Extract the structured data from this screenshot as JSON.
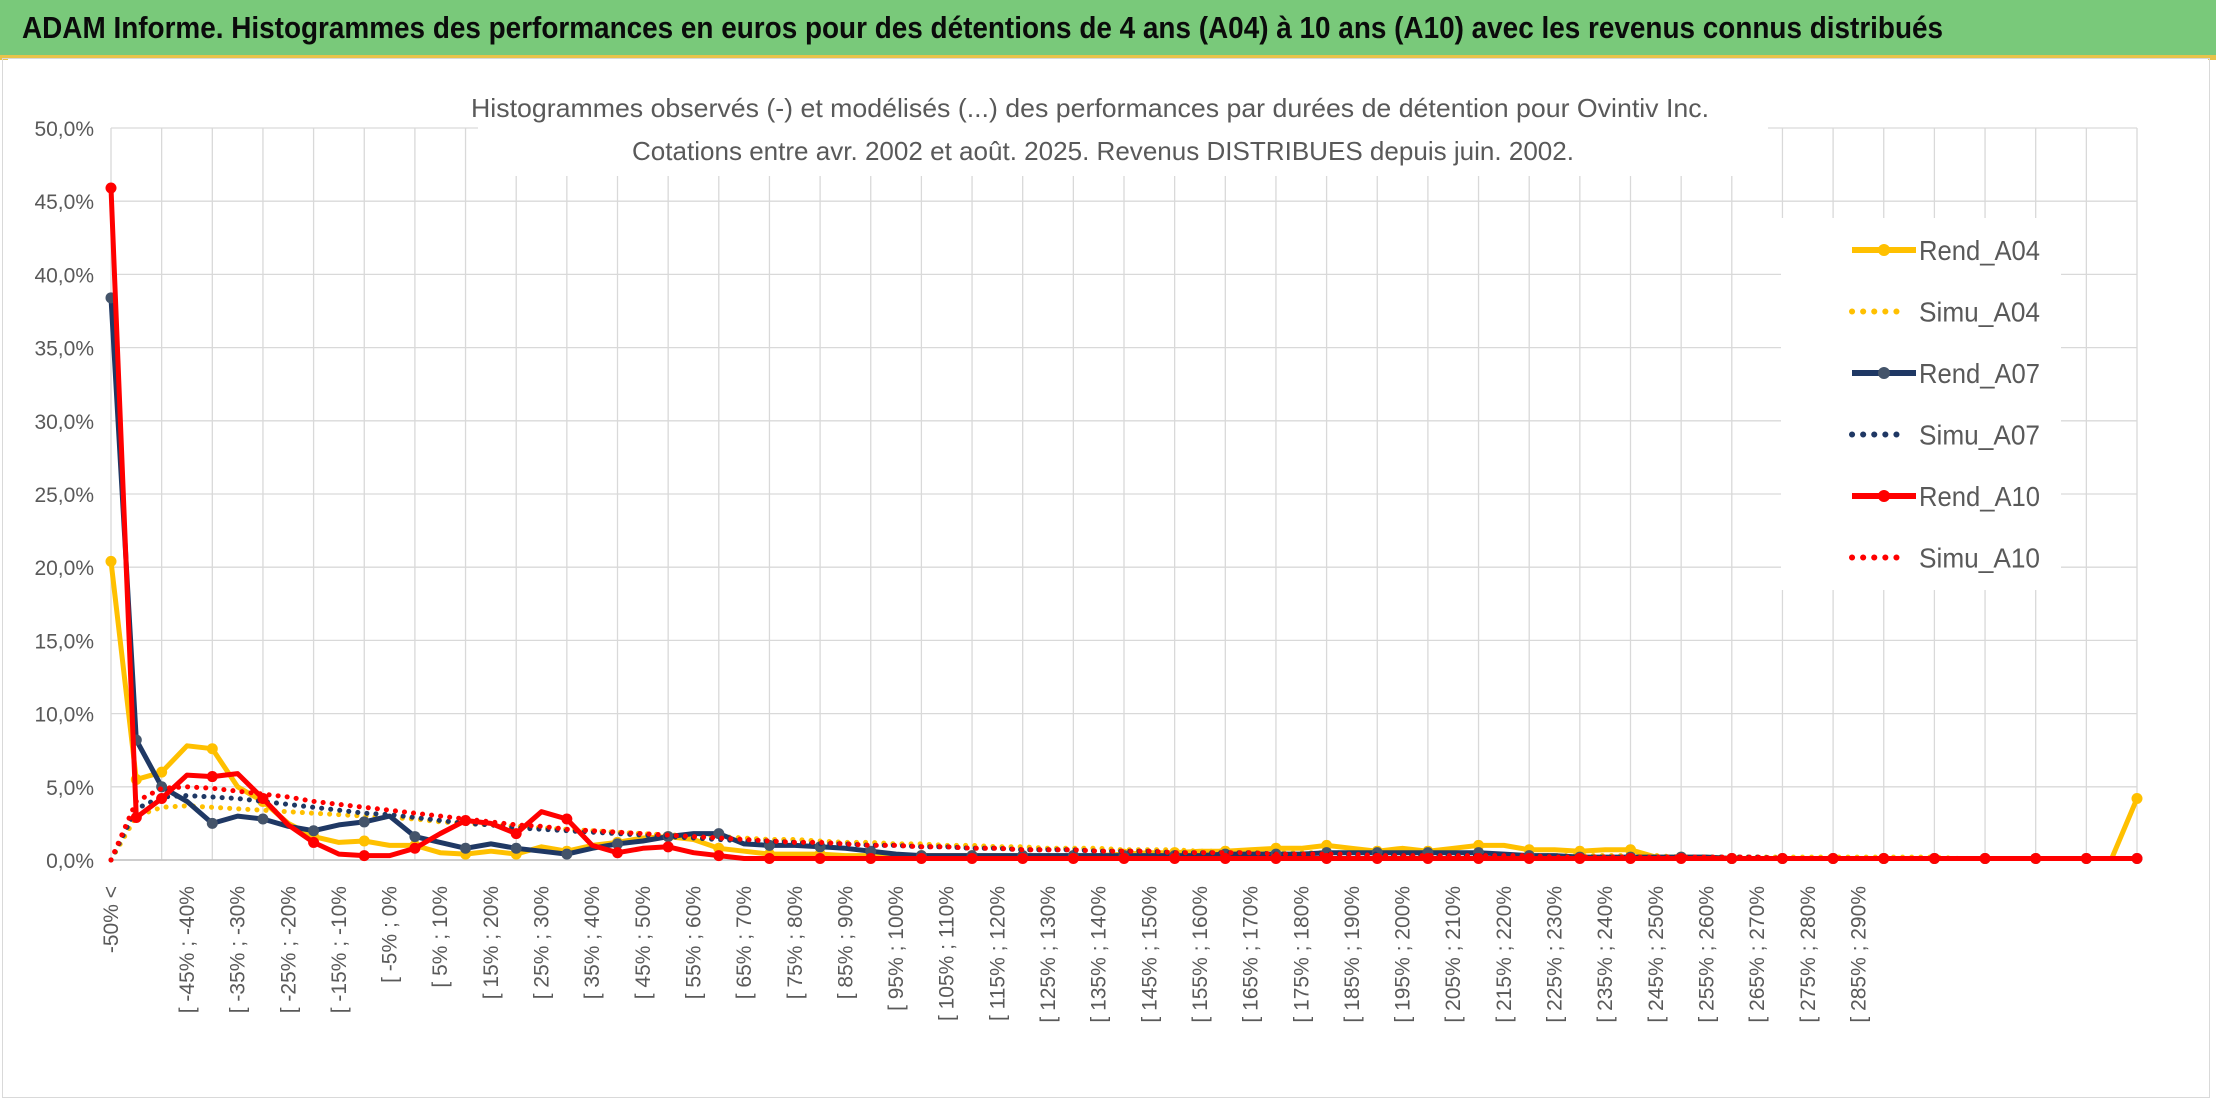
{
  "banner": {
    "title": "ADAM Informe. Histogrammes des performances en euros pour des détentions de 4 ans (A04) à 10 ans (A10) avec les revenus connus distribués"
  },
  "colors": {
    "banner_bg": "#79c97a",
    "A04": "#ffc000",
    "A07": "#1f3864",
    "A10": "#ff0000",
    "grid": "#d9d9d9"
  },
  "chart_data": {
    "type": "line",
    "title": "Histogrammes observés (-) et modélisés (...) des performances par durées de détention pour Ovintiv Inc.",
    "subtitle": "Cotations entre avr. 2002 et août. 2025. Revenus DISTRIBUES depuis juin. 2002.",
    "ylim": [
      0,
      50
    ],
    "y_ticks": [
      "0,0%",
      "5,0%",
      "10,0%",
      "15,0%",
      "20,0%",
      "25,0%",
      "30,0%",
      "35,0%",
      "40,0%",
      "45,0%",
      "50,0%"
    ],
    "grid": true,
    "legend_position": "right",
    "x_labels": [
      "-50% <",
      "[ -45% ; -40%",
      "[ -35% ; -30%",
      "[ -25% ; -20%",
      "[ -15% ; -10%",
      "[ -5% ; 0%",
      "[ 5% ; 10%",
      "[ 15% ; 20%",
      "[ 25% ; 30%",
      "[ 35% ; 40%",
      "[ 45% ; 50%",
      "[ 55% ; 60%",
      "[ 65% ; 70%",
      "[ 75% ; 80%",
      "[ 85% ; 90%",
      "[ 95% ; 100%",
      "[ 105% ; 110%",
      "[ 115% ; 120%",
      "[ 125% ; 130%",
      "[ 135% ; 140%",
      "[ 145% ; 150%",
      "[ 155% ; 160%",
      "[ 165% ; 170%",
      "[ 175% ; 180%",
      "[ 185% ; 190%",
      "[ 195% ; 200%",
      "[ 205% ; 210%",
      "[ 215% ; 220%",
      "[ 225% ; 230%",
      "[ 235% ; 240%",
      "[ 245% ; 250%",
      "[ 255% ; 260%",
      "[ 265% ; 270%",
      "[ 275% ; 280%",
      "[ 285% ; 290%"
    ],
    "series": [
      {
        "name": "Rend_A04",
        "style": "solid",
        "color": "#ffc000",
        "values": [
          20.4,
          5.5,
          6.0,
          7.8,
          7.6,
          5.0,
          4.0,
          2.5,
          1.6,
          1.2,
          1.3,
          1.0,
          1.0,
          0.5,
          0.4,
          0.6,
          0.4,
          0.9,
          0.6,
          1.0,
          1.2,
          1.5,
          1.6,
          1.4,
          0.8,
          0.6,
          0.4,
          0.4,
          0.4,
          0.3,
          0.3,
          0.2,
          0.3,
          0.3,
          0.3,
          0.3,
          0.3,
          0.3,
          0.3,
          0.3,
          0.4,
          0.5,
          0.5,
          0.6,
          0.6,
          0.7,
          0.8,
          0.8,
          1.0,
          0.8,
          0.6,
          0.8,
          0.6,
          0.8,
          1.0,
          1.0,
          0.7,
          0.7,
          0.6,
          0.7,
          0.7,
          0.2,
          0.2,
          0.2,
          0.1,
          0.1,
          0.1,
          0.1,
          0.1,
          0.1,
          0.1,
          0.1,
          0.1,
          0.1,
          0.1,
          0.1,
          0.1,
          0.1,
          0.1,
          0.1,
          4.2
        ]
      },
      {
        "name": "Simu_A04",
        "style": "dotted",
        "color": "#ffc000",
        "values": [
          0.0,
          3.0,
          3.6,
          3.7,
          3.6,
          3.5,
          3.4,
          3.3,
          3.2,
          3.1,
          3.0,
          2.9,
          2.8,
          2.6,
          2.5,
          2.4,
          2.3,
          2.2,
          2.1,
          2.0,
          1.9,
          1.8,
          1.7,
          1.7,
          1.6,
          1.5,
          1.4,
          1.4,
          1.3,
          1.2,
          1.2,
          1.1,
          1.1,
          1.0,
          1.0,
          0.9,
          0.9,
          0.8,
          0.8,
          0.8,
          0.7,
          0.7,
          0.7,
          0.6,
          0.6,
          0.6,
          0.5,
          0.5,
          0.5,
          0.5,
          0.4,
          0.4,
          0.4,
          0.4,
          0.4,
          0.3,
          0.3,
          0.3,
          0.3,
          0.3,
          0.3,
          0.3,
          0.2,
          0.2,
          0.2,
          0.2,
          0.2,
          0.2,
          0.2,
          0.2,
          0.2,
          0.2,
          0.2,
          0.1,
          0.1,
          0.1,
          0.1,
          0.1,
          0.1,
          0.1,
          0.1
        ]
      },
      {
        "name": "Rend_A07",
        "style": "solid",
        "color": "#1f3864",
        "values": [
          38.4,
          8.2,
          5.0,
          4.0,
          2.5,
          3.0,
          2.8,
          2.3,
          2.0,
          2.4,
          2.6,
          3.0,
          1.6,
          1.2,
          0.8,
          1.1,
          0.8,
          0.6,
          0.4,
          0.8,
          1.1,
          1.3,
          1.6,
          1.8,
          1.8,
          1.1,
          1.0,
          1.0,
          0.9,
          0.8,
          0.6,
          0.4,
          0.3,
          0.3,
          0.3,
          0.3,
          0.3,
          0.3,
          0.3,
          0.3,
          0.3,
          0.3,
          0.3,
          0.3,
          0.4,
          0.4,
          0.4,
          0.4,
          0.5,
          0.5,
          0.5,
          0.5,
          0.5,
          0.5,
          0.5,
          0.4,
          0.3,
          0.3,
          0.2,
          0.2,
          0.2,
          0.2,
          0.2,
          0.2,
          0.1,
          0.1,
          0.1,
          0.1,
          0.1,
          0.1,
          0.1,
          0.1,
          0.1,
          0.1,
          0.1,
          0.1,
          0.1,
          0.1,
          0.1,
          0.1,
          0.1
        ]
      },
      {
        "name": "Simu_A07",
        "style": "dotted",
        "color": "#1f3864",
        "values": [
          0.0,
          3.5,
          4.3,
          4.4,
          4.3,
          4.2,
          4.0,
          3.8,
          3.6,
          3.4,
          3.2,
          3.1,
          2.9,
          2.7,
          2.5,
          2.4,
          2.2,
          2.1,
          2.0,
          1.9,
          1.8,
          1.7,
          1.6,
          1.5,
          1.4,
          1.3,
          1.3,
          1.2,
          1.1,
          1.1,
          1.0,
          1.0,
          0.9,
          0.9,
          0.8,
          0.8,
          0.7,
          0.7,
          0.7,
          0.6,
          0.6,
          0.6,
          0.5,
          0.5,
          0.5,
          0.5,
          0.4,
          0.4,
          0.4,
          0.4,
          0.4,
          0.3,
          0.3,
          0.3,
          0.3,
          0.3,
          0.3,
          0.2,
          0.2,
          0.2,
          0.2,
          0.2,
          0.2,
          0.2,
          0.2,
          0.2,
          0.1,
          0.1,
          0.1,
          0.1,
          0.1,
          0.1,
          0.1,
          0.1,
          0.1,
          0.1,
          0.1,
          0.1,
          0.1,
          0.1,
          0.1
        ]
      },
      {
        "name": "Rend_A10",
        "style": "solid",
        "color": "#ff0000",
        "values": [
          45.9,
          2.9,
          4.2,
          5.8,
          5.7,
          5.9,
          4.2,
          2.4,
          1.2,
          0.4,
          0.3,
          0.3,
          0.8,
          1.8,
          2.7,
          2.5,
          1.8,
          3.3,
          2.8,
          1.0,
          0.5,
          0.8,
          0.9,
          0.5,
          0.3,
          0.1,
          0.1,
          0.1,
          0.1,
          0.1,
          0.1,
          0.1,
          0.1,
          0.1,
          0.1,
          0.1,
          0.1,
          0.1,
          0.1,
          0.1,
          0.1,
          0.1,
          0.1,
          0.1,
          0.1,
          0.1,
          0.1,
          0.1,
          0.1,
          0.1,
          0.1,
          0.1,
          0.1,
          0.1,
          0.1,
          0.1,
          0.1,
          0.1,
          0.1,
          0.1,
          0.1,
          0.1,
          0.1,
          0.1,
          0.1,
          0.1,
          0.1,
          0.1,
          0.1,
          0.1,
          0.1,
          0.1,
          0.1,
          0.1,
          0.1,
          0.1,
          0.1,
          0.1,
          0.1,
          0.1,
          0.1
        ]
      },
      {
        "name": "Simu_A10",
        "style": "dotted",
        "color": "#ff0000",
        "values": [
          0.0,
          4.0,
          4.9,
          5.0,
          4.9,
          4.7,
          4.5,
          4.3,
          4.0,
          3.8,
          3.6,
          3.4,
          3.2,
          3.0,
          2.8,
          2.6,
          2.4,
          2.3,
          2.1,
          2.0,
          1.9,
          1.8,
          1.7,
          1.6,
          1.5,
          1.4,
          1.3,
          1.2,
          1.2,
          1.1,
          1.0,
          1.0,
          0.9,
          0.9,
          0.8,
          0.8,
          0.7,
          0.7,
          0.7,
          0.6,
          0.6,
          0.6,
          0.5,
          0.5,
          0.5,
          0.5,
          0.4,
          0.4,
          0.4,
          0.4,
          0.3,
          0.3,
          0.3,
          0.3,
          0.3,
          0.3,
          0.3,
          0.2,
          0.2,
          0.2,
          0.2,
          0.2,
          0.2,
          0.2,
          0.2,
          0.2,
          0.1,
          0.1,
          0.1,
          0.1,
          0.1,
          0.1,
          0.1,
          0.1,
          0.1,
          0.1,
          0.1,
          0.1,
          0.1,
          0.1,
          0.1
        ]
      }
    ]
  }
}
